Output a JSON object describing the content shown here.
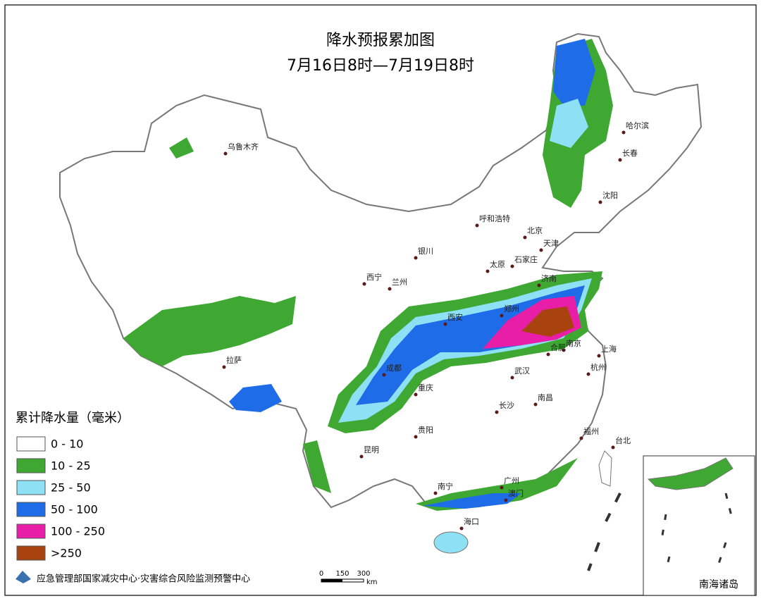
{
  "header": {
    "title": "降水预报累加图",
    "subtitle": "7月16日8时—7月19日8时"
  },
  "cities": [
    "乌鲁木齐",
    "哈尔滨",
    "长春",
    "沈阳",
    "呼和浩特",
    "北京",
    "天津",
    "银川",
    "石家庄",
    "太原",
    "济南",
    "西宁",
    "兰州",
    "郑州",
    "西安",
    "南京",
    "合肥",
    "上海",
    "成都",
    "杭州",
    "武汉",
    "重庆",
    "拉萨",
    "长沙",
    "南昌",
    "贵阳",
    "福州",
    "台北",
    "昆明",
    "广州",
    "南宁",
    "澳门",
    "海口"
  ],
  "legend": {
    "title": "累计降水量（毫米）",
    "items": [
      {
        "label": "0 - 10",
        "color": "#ffffff"
      },
      {
        "label": "10 - 25",
        "color": "#3ea832"
      },
      {
        "label": "25 - 50",
        "color": "#8ee0f5"
      },
      {
        "label": "50 - 100",
        "color": "#1e6ce8"
      },
      {
        "label": "100 - 250",
        "color": "#e81ea8"
      },
      {
        "label": ">250",
        "color": "#a8420e"
      }
    ]
  },
  "scale": {
    "ticks": [
      "0",
      "150",
      "300"
    ],
    "unit": "km"
  },
  "footer": "应急管理部国家减灾中心·灾害综合风险监测预警中心",
  "inset": {
    "label": "南海诸岛"
  }
}
